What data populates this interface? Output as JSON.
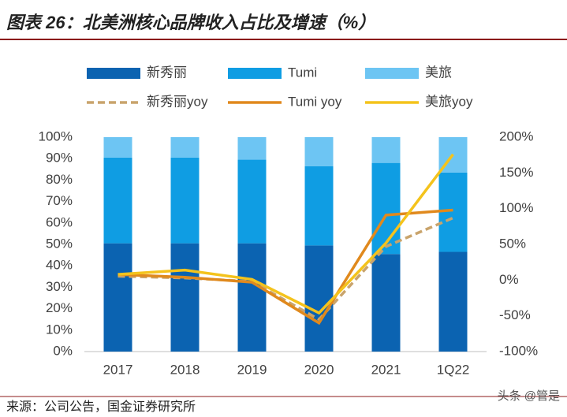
{
  "chart_data": {
    "type": "bar",
    "stacked": true,
    "title": "图表 26：北美洲核心品牌收入占比及增速（%）",
    "source": "来源：公司公告，国金证券研究所",
    "watermark": "头条 @管是",
    "categories": [
      "2017",
      "2018",
      "2019",
      "2020",
      "2021",
      "1Q22"
    ],
    "series": [
      {
        "name": "新秀丽",
        "type": "bar",
        "color": "#0b63b1",
        "values": [
          50.5,
          50.5,
          50.5,
          49.5,
          45.5,
          46.5
        ]
      },
      {
        "name": "Tumi",
        "type": "bar",
        "color": "#0f9de3",
        "values": [
          40,
          40,
          39,
          37,
          42.5,
          37
        ]
      },
      {
        "name": "美旅",
        "type": "bar",
        "color": "#6dc5f3",
        "values": [
          9.5,
          9.5,
          10.5,
          13.5,
          12,
          16.5
        ]
      },
      {
        "name": "新秀丽yoy",
        "type": "line",
        "axis": "y2",
        "dashed": true,
        "color": "#c9a46c",
        "values": [
          5.5,
          3,
          -2,
          -55,
          47,
          87
        ]
      },
      {
        "name": "Tumi yoy",
        "type": "line",
        "axis": "y2",
        "color": "#e0891d",
        "values": [
          8,
          4,
          -3,
          -60,
          91,
          98
        ]
      },
      {
        "name": "美旅yoy",
        "type": "line",
        "axis": "y2",
        "color": "#f4c31c",
        "values": [
          8,
          14,
          1,
          -46,
          52,
          176
        ]
      }
    ],
    "ylim": [
      0,
      100
    ],
    "yticks": [
      {
        "value": 0,
        "label": "0%"
      },
      {
        "value": 10,
        "label": "10%"
      },
      {
        "value": 20,
        "label": "20%"
      },
      {
        "value": 30,
        "label": "30%"
      },
      {
        "value": 40,
        "label": "40%"
      },
      {
        "value": 50,
        "label": "50%"
      },
      {
        "value": 60,
        "label": "60%"
      },
      {
        "value": 70,
        "label": "70%"
      },
      {
        "value": 80,
        "label": "80%"
      },
      {
        "value": 90,
        "label": "90%"
      },
      {
        "value": 100,
        "label": "100%"
      }
    ],
    "y2lim": [
      -100,
      200
    ],
    "y2ticks": [
      {
        "value": -100,
        "label": "-100%"
      },
      {
        "value": -50,
        "label": "-50%"
      },
      {
        "value": 0,
        "label": "0%"
      },
      {
        "value": 50,
        "label": "50%"
      },
      {
        "value": 100,
        "label": "100%"
      },
      {
        "value": 150,
        "label": "150%"
      },
      {
        "value": 200,
        "label": "200%"
      }
    ],
    "grid": false
  }
}
